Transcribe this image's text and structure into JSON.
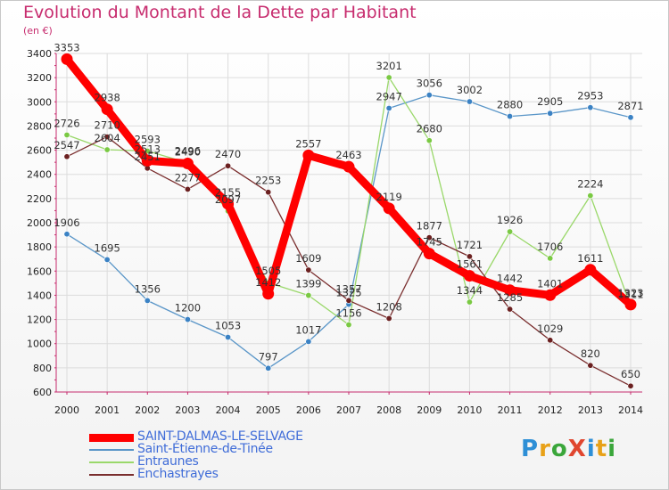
{
  "title": "Evolution du Montant de la Dette par Habitant",
  "unit": "(en €)",
  "logo": {
    "text": "ProXiti",
    "letter_colors": [
      "#2e8fd6",
      "#e8a118",
      "#3aa63a",
      "#e0462f",
      "#2e8fd6",
      "#e8a118",
      "#3aa63a"
    ]
  },
  "chart_data": {
    "type": "line",
    "x": [
      "2000",
      "2001",
      "2002",
      "2003",
      "2004",
      "2005",
      "2006",
      "2007",
      "2008",
      "2009",
      "2010",
      "2011",
      "2012",
      "2013",
      "2014"
    ],
    "ylim": [
      600,
      3400
    ],
    "yticks": [
      600,
      800,
      1000,
      1200,
      1400,
      1600,
      1800,
      2000,
      2200,
      2400,
      2600,
      2800,
      3000,
      3200,
      3400
    ],
    "grid": true,
    "legend_placement": "bottom-left",
    "series": [
      {
        "name": "SAINT-DALMAS-LE-SELVAGE",
        "color": "#ff0000",
        "marker_color": "#ff0000",
        "bold": true,
        "values": [
          3353,
          2938,
          2513,
          2490,
          2155,
          1412,
          2557,
          2463,
          2119,
          1745,
          1561,
          1442,
          1401,
          1611,
          1323
        ],
        "labels": [
          "3353",
          "2938",
          "2513",
          "2490",
          "2155",
          "1412",
          "2557",
          "2463",
          "2119",
          "1745",
          "1561",
          "1442",
          "1401",
          "1611",
          "1323"
        ]
      },
      {
        "name": "Saint-Étienne-de-Tinée",
        "color": "#5a96c8",
        "marker_color": "#3b82c4",
        "values": [
          1906,
          1695,
          1356,
          1200,
          1053,
          797,
          1017,
          1325,
          2947,
          3056,
          3002,
          2880,
          2905,
          2953,
          2871
        ],
        "labels": [
          "1906",
          "1695",
          "1356",
          "1200",
          "1053",
          "797",
          "1017",
          "1325",
          "2947",
          "3056",
          "3002",
          "2880",
          "2905",
          "2953",
          "2871"
        ]
      },
      {
        "name": "Entraunes",
        "color": "#9ad86a",
        "marker_color": "#7ac943",
        "values": [
          2726,
          2604,
          2593,
          2496,
          2097,
          1505,
          1399,
          1156,
          3201,
          2680,
          1344,
          1926,
          1706,
          2224,
          1311
        ],
        "labels": [
          "2726",
          "2604",
          "2593",
          "2496",
          "2097",
          "1505",
          "1399",
          "1156",
          "3201",
          "2680",
          "1344",
          "1926",
          "1706",
          "2224",
          "1311"
        ]
      },
      {
        "name": "Enchastrayes",
        "color": "#7a2e2e",
        "marker_color": "#6b2020",
        "values": [
          2547,
          2710,
          2451,
          2277,
          2470,
          2253,
          1609,
          1357,
          1208,
          1877,
          1721,
          1285,
          1029,
          820,
          650
        ],
        "labels": [
          "2547",
          "2710",
          "2451",
          "2277",
          "2470",
          "2253",
          "1609",
          "1357",
          "1208",
          "1877",
          "1721",
          "1285",
          "1029",
          "820",
          "650"
        ]
      }
    ]
  }
}
